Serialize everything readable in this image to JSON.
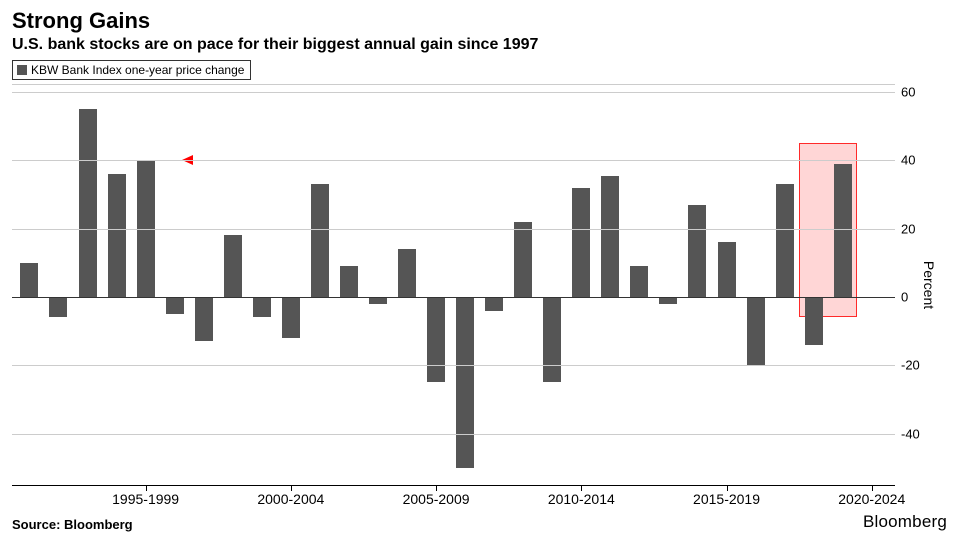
{
  "title": "Strong Gains",
  "subtitle": "U.S. bank stocks are on pace for their biggest annual gain since 1997",
  "legend": {
    "label": "KBW Bank Index one-year price change",
    "swatch_color": "#555555"
  },
  "source": "Source: Bloomberg",
  "brand": "Bloomberg",
  "chart": {
    "type": "bar",
    "background_color": "#ffffff",
    "bar_color": "#555555",
    "grid_color": "#cccccc",
    "baseline_color": "#333333",
    "ylabel": "Percent",
    "ylim": [
      -55,
      62
    ],
    "yticks": [
      -40,
      -20,
      0,
      20,
      40,
      60
    ],
    "years": [
      1993,
      1994,
      1995,
      1996,
      1997,
      1998,
      1999,
      2000,
      2001,
      2002,
      2003,
      2004,
      2005,
      2006,
      2007,
      2008,
      2009,
      2010,
      2011,
      2012,
      2013,
      2014,
      2015,
      2016,
      2017,
      2018,
      2019,
      2020,
      2021
    ],
    "values": [
      10,
      -6,
      55,
      36,
      40,
      -5,
      -13,
      18,
      -6,
      -12,
      33,
      9,
      -2,
      14,
      -25,
      -50,
      -4,
      22,
      -25,
      32,
      35.5,
      9,
      -2,
      27,
      16,
      -20,
      33,
      -14,
      39
    ],
    "x_group_labels": [
      "1995-1999",
      "2000-2004",
      "2005-2009",
      "2010-2014",
      "2015-2019",
      "2020-2024"
    ],
    "x_group_center_years": [
      1997,
      2002,
      2007,
      2012,
      2017,
      2022
    ],
    "bar_width_ratio": 0.62,
    "highlight": {
      "years": [
        2020,
        2021
      ],
      "fill": "rgba(255,0,0,0.16)",
      "stroke": "#ff2a2a"
    },
    "arrow": {
      "from_year": 2020.2,
      "to_year": 1998.1,
      "value": 40,
      "color": "#ff0000"
    },
    "title_fontsize": 22,
    "subtitle_fontsize": 16,
    "label_fontsize": 13
  }
}
